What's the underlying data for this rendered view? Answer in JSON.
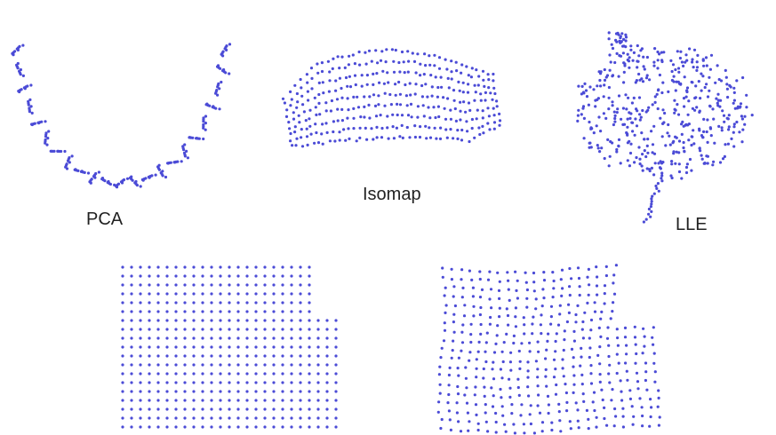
{
  "chart_data": [
    {
      "type": "scatter",
      "title": "PCA",
      "color": "#4b4bd6",
      "pattern": "u-shaped-projection-with-folded-segments"
    },
    {
      "type": "scatter",
      "title": "Isomap",
      "color": "#4b4bd6",
      "pattern": "curved-band-embedding"
    },
    {
      "type": "scatter",
      "title": "LLE",
      "color": "#4b4bd6",
      "pattern": "scattered-cloud-embedding"
    },
    {
      "type": "scatter",
      "title": "",
      "color": "#4b4bd6",
      "pattern": "regular-grid-with-cutout"
    },
    {
      "type": "scatter",
      "title": "",
      "color": "#4b4bd6",
      "pattern": "distorted-grid-reconstruction"
    }
  ]
}
